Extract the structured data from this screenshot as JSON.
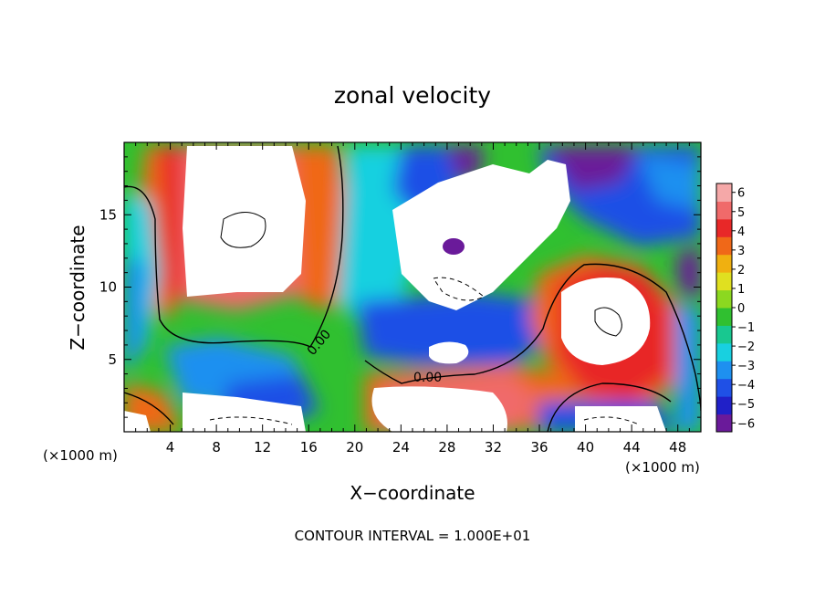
{
  "chart_data": {
    "type": "heatmap",
    "title": "zonal velocity",
    "xlabel": "X−coordinate",
    "ylabel": "Z−coordinate",
    "x_unit": "(×1000 m)",
    "xlim": [
      0,
      50
    ],
    "ylim": [
      0,
      20
    ],
    "x_ticks": [
      4,
      8,
      12,
      16,
      20,
      24,
      28,
      32,
      36,
      40,
      44,
      48
    ],
    "y_ticks": [
      5,
      10,
      15
    ],
    "footer": "CONTOUR INTERVAL = 1.000E+01",
    "contour_label": "0.00",
    "colorbar": {
      "levels": [
        -6,
        -5,
        -4,
        -3,
        -2,
        -1,
        0,
        1,
        2,
        3,
        4,
        5,
        6
      ],
      "colors": [
        "#6a1a9a",
        "#2020c8",
        "#1f50e6",
        "#1e90f0",
        "#18d0e0",
        "#18c890",
        "#30c030",
        "#8cd820",
        "#e0e020",
        "#f0b010",
        "#f06818",
        "#e82828",
        "#f06a6a",
        "#f5a8a8"
      ]
    }
  }
}
